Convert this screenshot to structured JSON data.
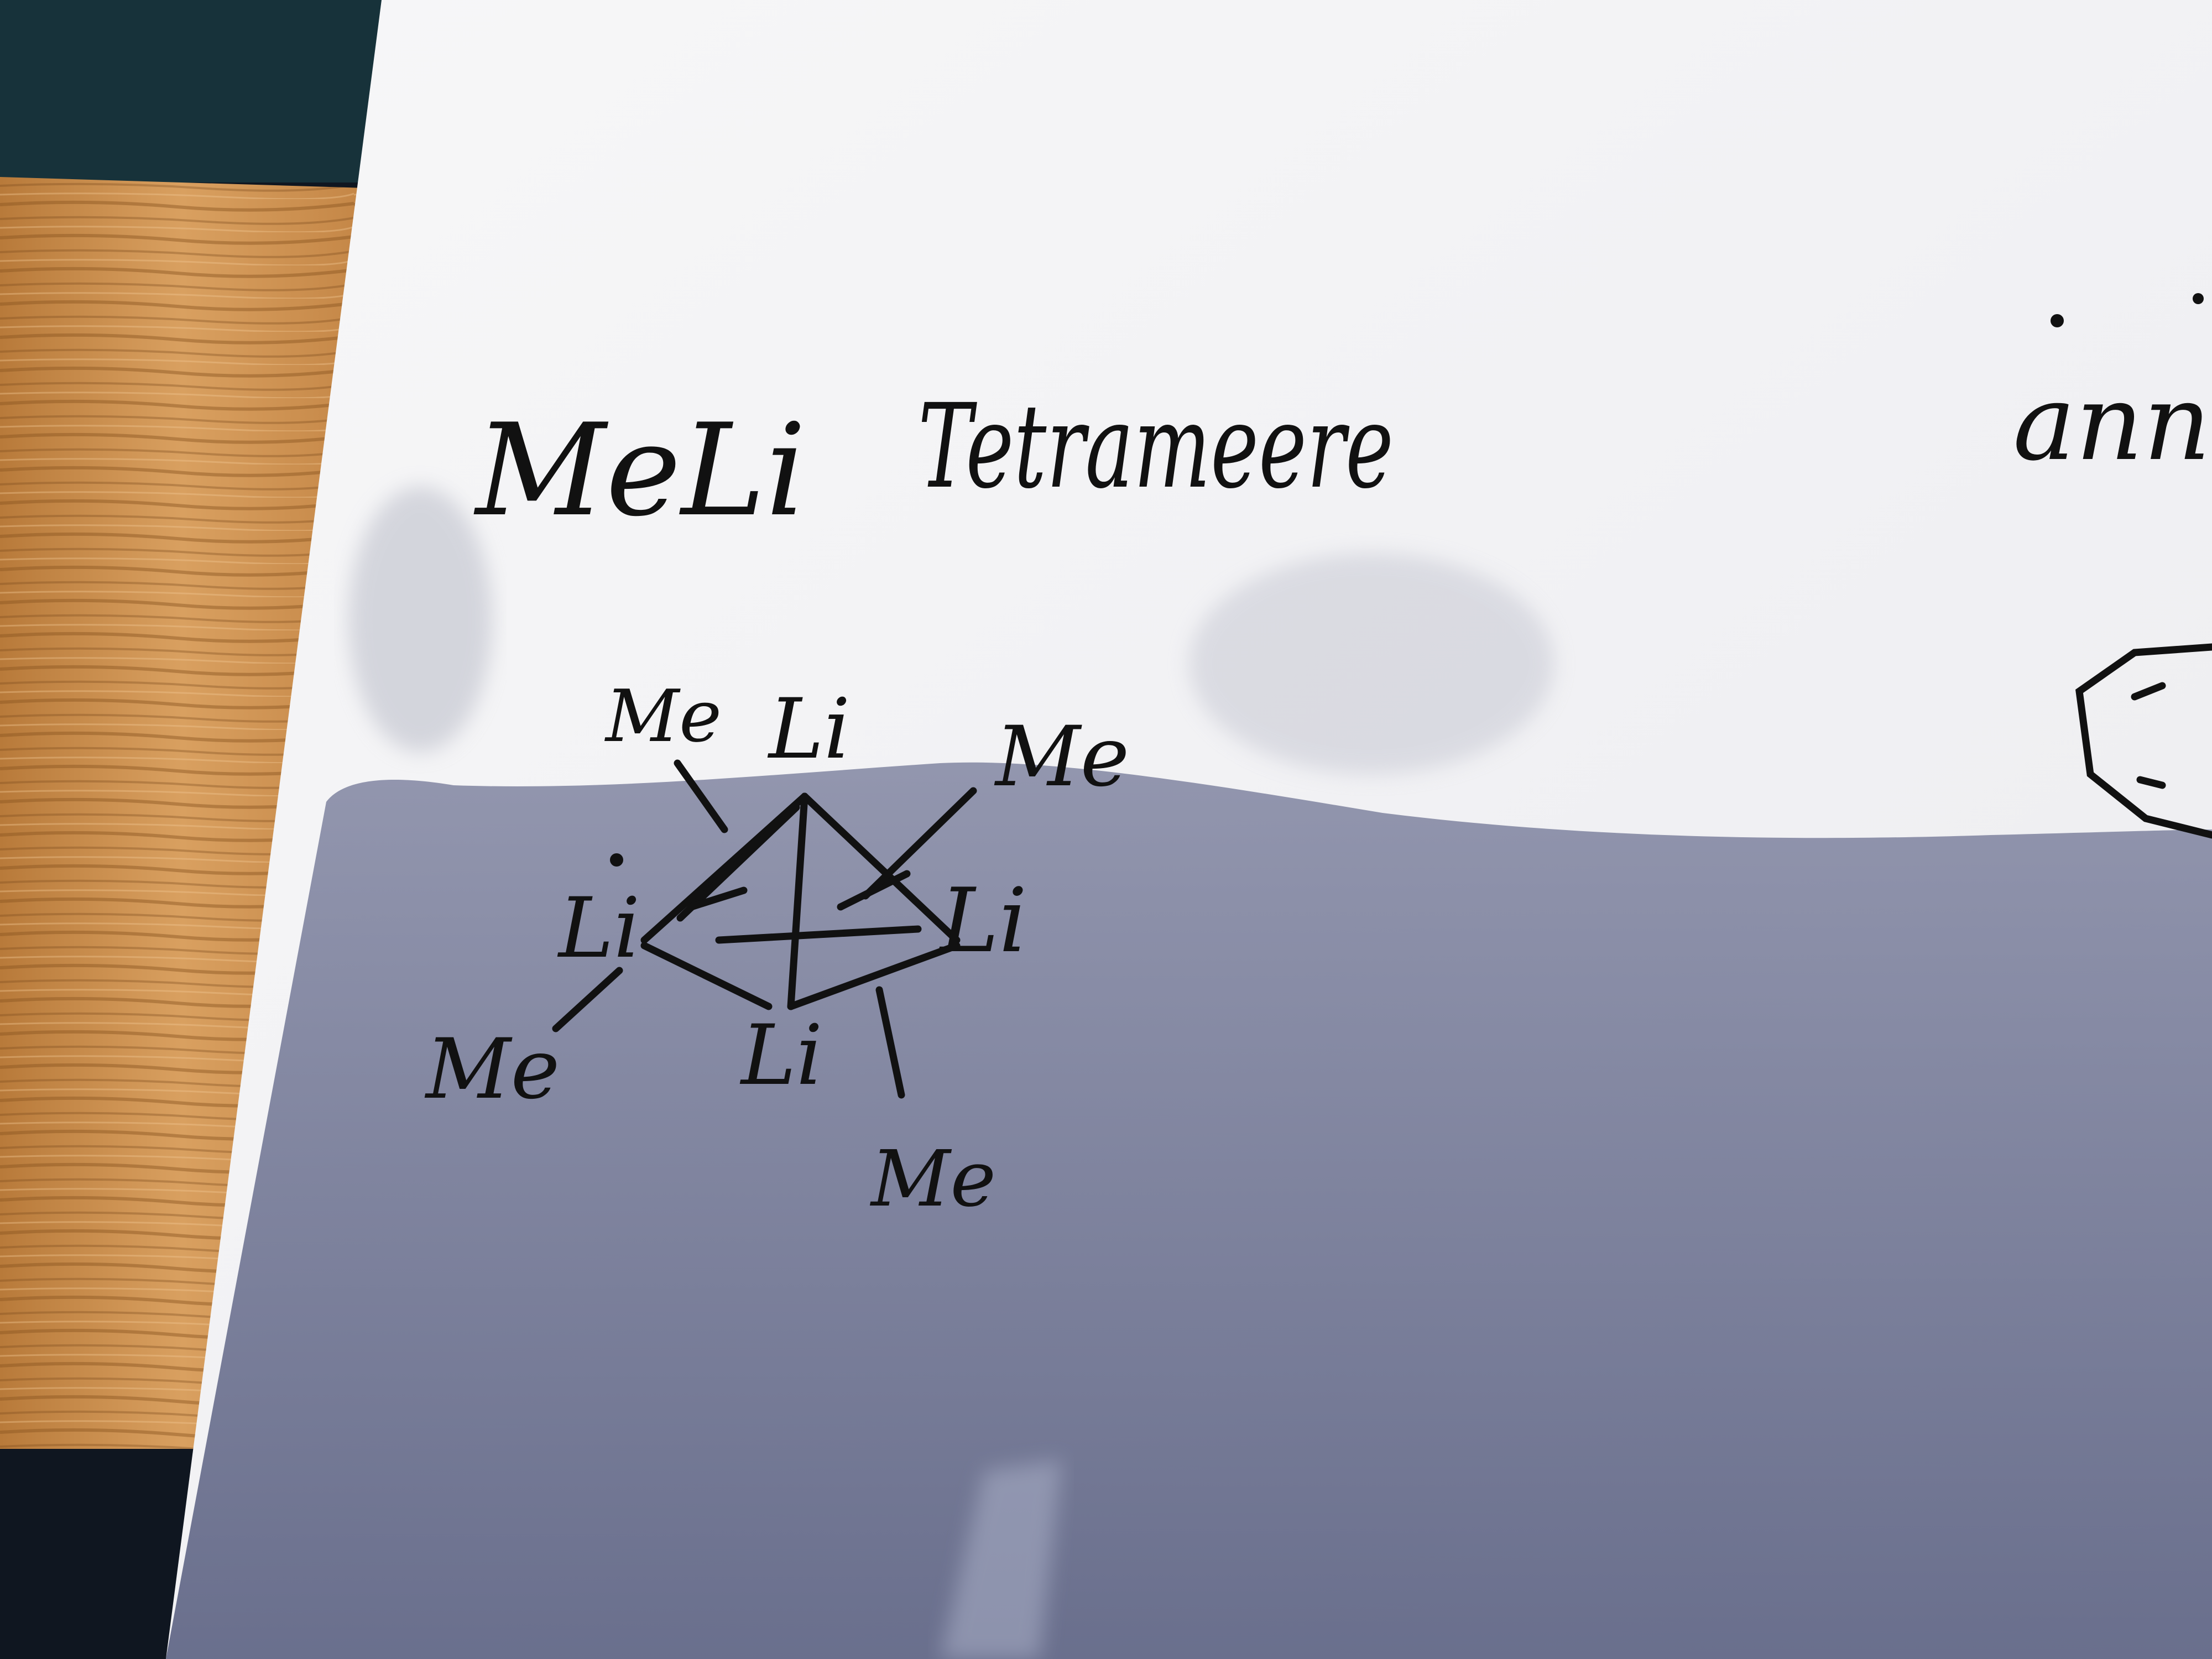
{
  "photo": {
    "subject": "handwritten note on paper lying on a wooden table",
    "colors": {
      "wood_light": "#d49a52",
      "wood_dark": "#8a5420",
      "paper": "#f5f5f7",
      "shadow": "#6b7190",
      "ink": "#111111",
      "background": "#0f1620"
    }
  },
  "note": {
    "heading_formula": "MeLi",
    "heading_word": "Tetrameere",
    "cut_off_word": "ann",
    "structure": {
      "li_labels": [
        "Li",
        "Li",
        "Li",
        "Li"
      ],
      "me_labels": [
        "Me",
        "Me",
        "Me",
        "Me"
      ]
    }
  }
}
